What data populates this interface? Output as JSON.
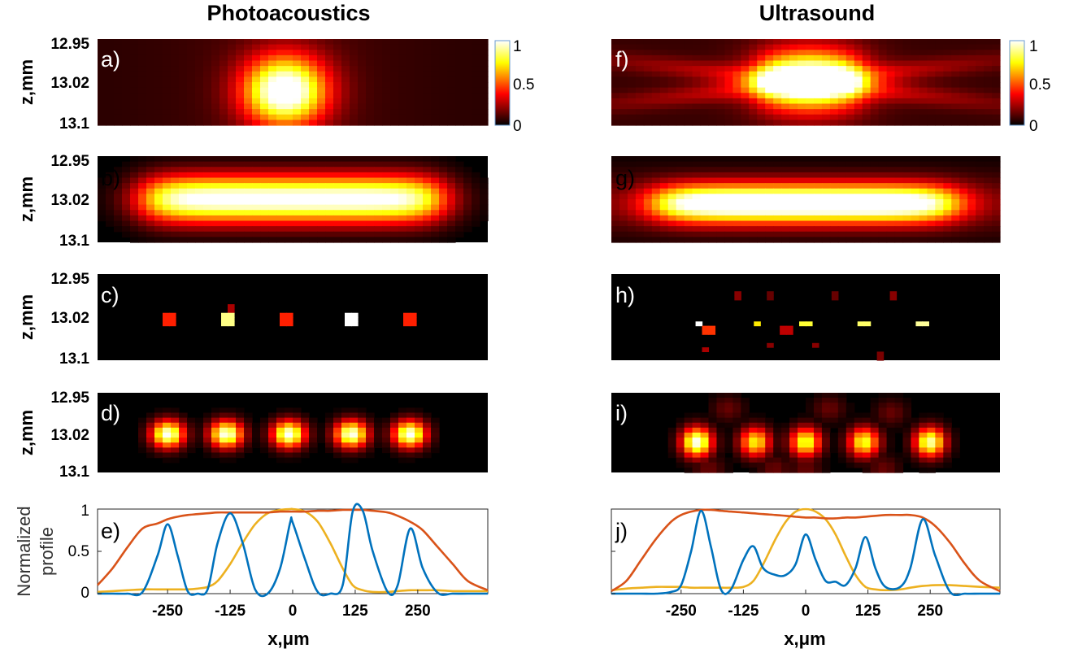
{
  "columns": [
    {
      "title": "Photoacoustics"
    },
    {
      "title": "Ultrasound"
    }
  ],
  "colormap": {
    "name": "hot",
    "ticks": [
      "1",
      "0.5",
      "0"
    ]
  },
  "axes": {
    "z_label": "z,mm",
    "z_ticks": [
      "12.95",
      "13.02",
      "13.1"
    ],
    "x_label": "x,μm",
    "x_ticks": [
      "-250",
      "-125",
      "0",
      "125",
      "250"
    ],
    "profile_label_line1": "Normalized",
    "profile_label_line2": "profile",
    "profile_ticks": [
      "1",
      "0.5",
      "0"
    ]
  },
  "panels": [
    {
      "label": "a)",
      "kind": "single-spot-pa"
    },
    {
      "label": "b)",
      "kind": "elongated-pa"
    },
    {
      "label": "c)",
      "kind": "sparse-pa"
    },
    {
      "label": "d)",
      "kind": "blurred-pa"
    },
    {
      "label": "f)",
      "kind": "single-spot-us"
    },
    {
      "label": "g)",
      "kind": "elongated-us"
    },
    {
      "label": "h)",
      "kind": "sparse-us"
    },
    {
      "label": "i)",
      "kind": "blurred-us"
    }
  ],
  "chart_data": [
    {
      "type": "line",
      "panel": "e)",
      "xlabel": "x,μm",
      "ylabel": "Normalized profile",
      "xlim": [
        -390,
        390
      ],
      "ylim": [
        0,
        1
      ],
      "x": [
        -390,
        -360,
        -330,
        -300,
        -270,
        -250,
        -230,
        -210,
        -190,
        -170,
        -150,
        -125,
        -100,
        -75,
        -50,
        -25,
        -5,
        0,
        25,
        50,
        75,
        100,
        120,
        140,
        160,
        190,
        210,
        235,
        260,
        290,
        320,
        350,
        390
      ],
      "series": [
        {
          "color": "#0072BD",
          "values": [
            0,
            0,
            0,
            0.02,
            0.45,
            0.82,
            0.45,
            0.03,
            0,
            0.05,
            0.6,
            0.95,
            0.6,
            0.05,
            0,
            0.3,
            0.84,
            0.84,
            0.4,
            0.02,
            0,
            0.1,
            0.97,
            0.98,
            0.5,
            0.02,
            0.1,
            0.77,
            0.3,
            0.01,
            0,
            0,
            0
          ]
        },
        {
          "color": "#D95319",
          "values": [
            0.1,
            0.3,
            0.55,
            0.77,
            0.83,
            0.88,
            0.91,
            0.93,
            0.94,
            0.95,
            0.96,
            0.96,
            0.96,
            0.96,
            0.96,
            0.97,
            0.97,
            0.97,
            0.97,
            0.98,
            0.98,
            0.99,
            0.99,
            0.99,
            0.98,
            0.96,
            0.92,
            0.85,
            0.75,
            0.55,
            0.35,
            0.15,
            0.04
          ]
        },
        {
          "color": "#EDB120",
          "values": [
            0.02,
            0.03,
            0.04,
            0.05,
            0.05,
            0.05,
            0.05,
            0.05,
            0.06,
            0.08,
            0.15,
            0.35,
            0.6,
            0.82,
            0.95,
            0.99,
            1.0,
            1.0,
            0.97,
            0.85,
            0.6,
            0.3,
            0.1,
            0.04,
            0.02,
            0.02,
            0.03,
            0.04,
            0.04,
            0.04,
            0.03,
            0.03,
            0.03
          ]
        }
      ]
    },
    {
      "type": "line",
      "panel": "j)",
      "xlabel": "x,μm",
      "ylabel": "Normalized profile",
      "xlim": [
        -390,
        390
      ],
      "ylim": [
        0,
        1
      ],
      "x": [
        -390,
        -360,
        -330,
        -300,
        -270,
        -250,
        -230,
        -210,
        -190,
        -170,
        -150,
        -125,
        -105,
        -85,
        -60,
        -40,
        -20,
        0,
        20,
        40,
        60,
        80,
        100,
        120,
        140,
        160,
        190,
        210,
        235,
        260,
        290,
        320,
        350,
        390
      ],
      "series": [
        {
          "color": "#0072BD",
          "values": [
            0,
            0,
            0,
            0,
            0.02,
            0.1,
            0.5,
            0.98,
            0.55,
            0.05,
            0.05,
            0.4,
            0.56,
            0.3,
            0.22,
            0.22,
            0.35,
            0.7,
            0.4,
            0.15,
            0.14,
            0.1,
            0.3,
            0.67,
            0.3,
            0.08,
            0.08,
            0.3,
            0.88,
            0.45,
            0.02,
            0,
            0,
            0
          ]
        },
        {
          "color": "#D95319",
          "values": [
            0.03,
            0.15,
            0.4,
            0.65,
            0.85,
            0.93,
            0.97,
            0.99,
            0.99,
            0.98,
            0.97,
            0.96,
            0.95,
            0.94,
            0.93,
            0.92,
            0.91,
            0.9,
            0.9,
            0.89,
            0.89,
            0.9,
            0.9,
            0.91,
            0.92,
            0.93,
            0.93,
            0.93,
            0.9,
            0.8,
            0.6,
            0.35,
            0.15,
            0.03
          ]
        },
        {
          "color": "#EDB120",
          "values": [
            0.04,
            0.06,
            0.07,
            0.08,
            0.08,
            0.08,
            0.07,
            0.07,
            0.07,
            0.07,
            0.07,
            0.08,
            0.15,
            0.35,
            0.65,
            0.85,
            0.97,
            1.0,
            0.97,
            0.88,
            0.7,
            0.45,
            0.22,
            0.08,
            0.05,
            0.04,
            0.05,
            0.07,
            0.09,
            0.1,
            0.1,
            0.09,
            0.08,
            0.07
          ]
        }
      ]
    }
  ]
}
